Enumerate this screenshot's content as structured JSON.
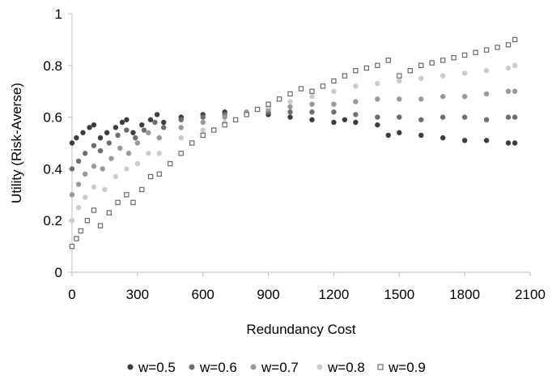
{
  "chart_data": {
    "type": "scatter",
    "title": "",
    "xlabel": "Redundancy Cost",
    "ylabel": "Utility (Risk-Averse)",
    "xlim": [
      0,
      2100
    ],
    "ylim": [
      0,
      1
    ],
    "x_ticks": [
      0,
      300,
      600,
      900,
      1200,
      1500,
      1800,
      2100
    ],
    "y_ticks": [
      0,
      0.2,
      0.4,
      0.6,
      0.8,
      1
    ],
    "x_tick_labels": [
      "0",
      "300",
      "600",
      "900",
      "1200",
      "1500",
      "1800",
      "2100"
    ],
    "y_tick_labels": [
      "0",
      "0.2",
      "0.4",
      "0.6",
      "0.8",
      "1"
    ],
    "grid": false,
    "legend_position": "bottom",
    "series": [
      {
        "name": "w=0.5",
        "color": "#3d3d3d",
        "marker": "circle",
        "points": [
          [
            0,
            0.5
          ],
          [
            20,
            0.52
          ],
          [
            50,
            0.54
          ],
          [
            80,
            0.56
          ],
          [
            100,
            0.57
          ],
          [
            130,
            0.52
          ],
          [
            160,
            0.54
          ],
          [
            200,
            0.56
          ],
          [
            230,
            0.58
          ],
          [
            250,
            0.59
          ],
          [
            280,
            0.54
          ],
          [
            320,
            0.57
          ],
          [
            360,
            0.59
          ],
          [
            390,
            0.61
          ],
          [
            420,
            0.58
          ],
          [
            500,
            0.6
          ],
          [
            600,
            0.61
          ],
          [
            700,
            0.62
          ],
          [
            800,
            0.61
          ],
          [
            900,
            0.61
          ],
          [
            1000,
            0.6
          ],
          [
            1100,
            0.59
          ],
          [
            1200,
            0.58
          ],
          [
            1250,
            0.59
          ],
          [
            1300,
            0.58
          ],
          [
            1400,
            0.57
          ],
          [
            1450,
            0.53
          ],
          [
            1500,
            0.54
          ],
          [
            1600,
            0.53
          ],
          [
            1700,
            0.52
          ],
          [
            1800,
            0.51
          ],
          [
            1900,
            0.51
          ],
          [
            2000,
            0.5
          ],
          [
            2030,
            0.5
          ]
        ]
      },
      {
        "name": "w=0.6",
        "color": "#6e6e6e",
        "marker": "circle",
        "points": [
          [
            0,
            0.4
          ],
          [
            30,
            0.43
          ],
          [
            60,
            0.46
          ],
          [
            100,
            0.49
          ],
          [
            130,
            0.47
          ],
          [
            170,
            0.5
          ],
          [
            210,
            0.53
          ],
          [
            250,
            0.55
          ],
          [
            290,
            0.52
          ],
          [
            330,
            0.55
          ],
          [
            380,
            0.58
          ],
          [
            420,
            0.56
          ],
          [
            500,
            0.59
          ],
          [
            600,
            0.6
          ],
          [
            700,
            0.61
          ],
          [
            800,
            0.61
          ],
          [
            900,
            0.62
          ],
          [
            1000,
            0.62
          ],
          [
            1100,
            0.62
          ],
          [
            1200,
            0.62
          ],
          [
            1300,
            0.61
          ],
          [
            1400,
            0.6
          ],
          [
            1500,
            0.6
          ],
          [
            1600,
            0.59
          ],
          [
            1700,
            0.6
          ],
          [
            1800,
            0.6
          ],
          [
            1900,
            0.59
          ],
          [
            2000,
            0.6
          ],
          [
            2030,
            0.6
          ]
        ]
      },
      {
        "name": "w=0.7",
        "color": "#999999",
        "marker": "circle",
        "points": [
          [
            0,
            0.3
          ],
          [
            30,
            0.34
          ],
          [
            60,
            0.38
          ],
          [
            100,
            0.41
          ],
          [
            140,
            0.4
          ],
          [
            180,
            0.44
          ],
          [
            220,
            0.48
          ],
          [
            260,
            0.46
          ],
          [
            300,
            0.5
          ],
          [
            350,
            0.54
          ],
          [
            400,
            0.52
          ],
          [
            500,
            0.56
          ],
          [
            600,
            0.58
          ],
          [
            700,
            0.6
          ],
          [
            800,
            0.62
          ],
          [
            900,
            0.63
          ],
          [
            1000,
            0.64
          ],
          [
            1100,
            0.65
          ],
          [
            1200,
            0.65
          ],
          [
            1300,
            0.66
          ],
          [
            1400,
            0.67
          ],
          [
            1500,
            0.67
          ],
          [
            1600,
            0.67
          ],
          [
            1700,
            0.68
          ],
          [
            1800,
            0.68
          ],
          [
            1900,
            0.69
          ],
          [
            2000,
            0.7
          ],
          [
            2030,
            0.7
          ]
        ]
      },
      {
        "name": "w=0.8",
        "color": "#cccccc",
        "marker": "circle",
        "points": [
          [
            0,
            0.2
          ],
          [
            30,
            0.25
          ],
          [
            60,
            0.29
          ],
          [
            100,
            0.33
          ],
          [
            150,
            0.32
          ],
          [
            200,
            0.37
          ],
          [
            250,
            0.4
          ],
          [
            300,
            0.42
          ],
          [
            350,
            0.46
          ],
          [
            400,
            0.46
          ],
          [
            500,
            0.52
          ],
          [
            600,
            0.55
          ],
          [
            700,
            0.58
          ],
          [
            800,
            0.61
          ],
          [
            900,
            0.64
          ],
          [
            1000,
            0.66
          ],
          [
            1100,
            0.68
          ],
          [
            1200,
            0.7
          ],
          [
            1300,
            0.72
          ],
          [
            1400,
            0.73
          ],
          [
            1500,
            0.74
          ],
          [
            1600,
            0.75
          ],
          [
            1700,
            0.76
          ],
          [
            1800,
            0.77
          ],
          [
            1900,
            0.78
          ],
          [
            2000,
            0.79
          ],
          [
            2030,
            0.8
          ]
        ]
      },
      {
        "name": "w=0.9",
        "color": "#6a6a6a",
        "marker": "square-open",
        "points": [
          [
            0,
            0.1
          ],
          [
            20,
            0.13
          ],
          [
            40,
            0.16
          ],
          [
            70,
            0.2
          ],
          [
            100,
            0.24
          ],
          [
            130,
            0.18
          ],
          [
            170,
            0.23
          ],
          [
            210,
            0.27
          ],
          [
            250,
            0.3
          ],
          [
            280,
            0.27
          ],
          [
            320,
            0.32
          ],
          [
            360,
            0.37
          ],
          [
            400,
            0.38
          ],
          [
            450,
            0.42
          ],
          [
            500,
            0.46
          ],
          [
            550,
            0.5
          ],
          [
            600,
            0.53
          ],
          [
            650,
            0.55
          ],
          [
            700,
            0.57
          ],
          [
            750,
            0.59
          ],
          [
            800,
            0.61
          ],
          [
            850,
            0.63
          ],
          [
            900,
            0.65
          ],
          [
            950,
            0.67
          ],
          [
            1000,
            0.69
          ],
          [
            1050,
            0.71
          ],
          [
            1100,
            0.7
          ],
          [
            1150,
            0.72
          ],
          [
            1200,
            0.74
          ],
          [
            1250,
            0.76
          ],
          [
            1300,
            0.78
          ],
          [
            1350,
            0.79
          ],
          [
            1400,
            0.8
          ],
          [
            1450,
            0.82
          ],
          [
            1500,
            0.76
          ],
          [
            1550,
            0.78
          ],
          [
            1600,
            0.8
          ],
          [
            1650,
            0.81
          ],
          [
            1700,
            0.82
          ],
          [
            1750,
            0.83
          ],
          [
            1800,
            0.84
          ],
          [
            1850,
            0.85
          ],
          [
            1900,
            0.86
          ],
          [
            1950,
            0.87
          ],
          [
            2000,
            0.88
          ],
          [
            2030,
            0.9
          ]
        ]
      }
    ]
  }
}
